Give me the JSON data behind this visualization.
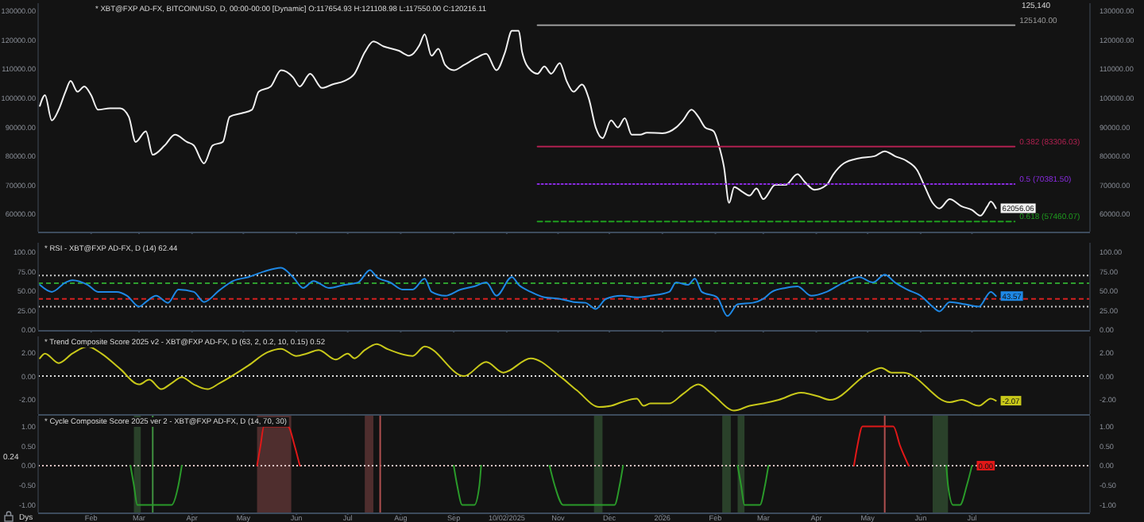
{
  "chart_data": [
    {
      "type": "line",
      "title": "* XBT@FXP AD-FX, BITCOIN/USD, D, 00:00-00:00 [Dynamic] O:117654.93 H:121108.98 L:117550.00 C:120216.11",
      "xlim": [
        "2025-01-01",
        "2026-09-08"
      ],
      "xticks": [
        {
          "value": "2025-02-01",
          "label": null
        },
        {
          "value": "2025-03-01",
          "label": null
        },
        {
          "value": "2025-04-01",
          "label": null
        },
        {
          "value": "2025-05-01",
          "label": null
        },
        {
          "value": "2025-06-01",
          "label": null
        },
        {
          "value": "2025-07-01",
          "label": null
        },
        {
          "value": "2025-08-01",
          "label": null
        },
        {
          "value": "2025-09-01",
          "label": null
        },
        {
          "value": "2025-10-02",
          "label": null
        },
        {
          "value": "2025-11-01",
          "label": null
        },
        {
          "value": "2025-12-01",
          "label": null
        },
        {
          "value": "2026-01-01",
          "label": null
        },
        {
          "value": "2026-02-01",
          "label": null
        },
        {
          "value": "2026-03-01",
          "label": null
        },
        {
          "value": "2026-04-01",
          "label": null
        },
        {
          "value": "2026-05-01",
          "label": null
        },
        {
          "value": "2026-06-01",
          "label": null
        },
        {
          "value": "2026-07-01",
          "label": null
        }
      ],
      "tick_labels": "y",
      "ylim": [
        54000,
        132700
      ],
      "yticks": [
        {
          "value": 60000,
          "label": "60000.00"
        },
        {
          "value": 70000,
          "label": "70000.00"
        },
        {
          "value": 80000,
          "label": "80000.00"
        },
        {
          "value": 90000,
          "label": "90000.00"
        },
        {
          "value": 100000,
          "label": "100000.00"
        },
        {
          "value": 110000,
          "label": "110000.00"
        },
        {
          "value": 120000,
          "label": "120000.00"
        },
        {
          "value": 130000,
          "label": "130000.00"
        }
      ],
      "y2lim": [
        54000,
        132700
      ],
      "y2ticks": [
        {
          "value": 60000,
          "label": "60000.00"
        },
        {
          "value": 70000,
          "label": "70000.00"
        },
        {
          "value": 80000,
          "label": "80000.00"
        },
        {
          "value": 90000,
          "label": "90000.00"
        },
        {
          "value": 100000,
          "label": "100000.00"
        },
        {
          "value": 110000,
          "label": "110000.00"
        },
        {
          "value": 120000,
          "label": "120000.00"
        },
        {
          "value": 130000,
          "label": "130000.00"
        }
      ],
      "annotations": [
        "125,140",
        {
          "text": "62056.06",
          "x": "2026-07-15",
          "y": 62056.06
        }
      ],
      "series": [
        {
          "color": "#f0f0f0",
          "line_style": "solid",
          "x": [
            "2025-01-02",
            "2025-01-05",
            "2025-01-09",
            "2025-01-13",
            "2025-01-17",
            "2025-01-20",
            "2025-01-24",
            "2025-01-28",
            "2025-02-01",
            "2025-02-05",
            "2025-02-12",
            "2025-02-18",
            "2025-02-23",
            "2025-02-27",
            "2025-03-05",
            "2025-03-09",
            "2025-03-16",
            "2025-03-22",
            "2025-03-29",
            "2025-04-02",
            "2025-04-08",
            "2025-04-13",
            "2025-04-19",
            "2025-04-23",
            "2025-04-30",
            "2025-05-06",
            "2025-05-10",
            "2025-05-17",
            "2025-05-23",
            "2025-05-30",
            "2025-06-03",
            "2025-06-09",
            "2025-06-16",
            "2025-06-22",
            "2025-06-29",
            "2025-07-05",
            "2025-07-11",
            "2025-07-16",
            "2025-07-22",
            "2025-07-31",
            "2025-08-06",
            "2025-08-12",
            "2025-08-15",
            "2025-08-19",
            "2025-08-23",
            "2025-08-27",
            "2025-09-01",
            "2025-09-07",
            "2025-09-14",
            "2025-09-20",
            "2025-09-26",
            "2025-10-01",
            "2025-10-05",
            "2025-10-09",
            "2025-10-11",
            "2025-10-16",
            "2025-10-20",
            "2025-10-24",
            "2025-10-28",
            "2025-11-02",
            "2025-11-06",
            "2025-11-10",
            "2025-11-15",
            "2025-11-19",
            "2025-11-23",
            "2025-11-27",
            "2025-12-02",
            "2025-12-06",
            "2025-12-10",
            "2025-12-14",
            "2025-12-19",
            "2025-12-23",
            "2026-01-01",
            "2026-01-09",
            "2026-01-13",
            "2026-01-18",
            "2026-01-22",
            "2026-01-26",
            "2026-01-31",
            "2026-02-03",
            "2026-02-06",
            "2026-02-09",
            "2026-02-12",
            "2026-02-17",
            "2026-02-21",
            "2026-02-25",
            "2026-03-01",
            "2026-03-08",
            "2026-03-14",
            "2026-03-21",
            "2026-03-25",
            "2026-03-31",
            "2026-04-07",
            "2026-04-11",
            "2026-04-17",
            "2026-04-26",
            "2026-05-05",
            "2026-05-11",
            "2026-05-17",
            "2026-05-24",
            "2026-05-30",
            "2026-06-03",
            "2026-06-08",
            "2026-06-12",
            "2026-06-18",
            "2026-06-25",
            "2026-07-01",
            "2026-07-06",
            "2026-07-10",
            "2026-07-12",
            "2026-07-15"
          ],
          "values": [
            97300,
            101000,
            92300,
            96000,
            102200,
            105900,
            102200,
            104000,
            101000,
            96000,
            96500,
            96500,
            93600,
            84900,
            88600,
            80500,
            83700,
            87400,
            84900,
            83700,
            77500,
            83700,
            84900,
            93600,
            94800,
            96000,
            102200,
            104000,
            109600,
            107200,
            104000,
            108400,
            103500,
            104700,
            105900,
            108400,
            115800,
            119500,
            117800,
            116300,
            114600,
            118300,
            122000,
            114600,
            117000,
            111400,
            109600,
            111400,
            113800,
            115300,
            109600,
            115800,
            123200,
            123200,
            115800,
            109600,
            108400,
            110900,
            108400,
            112100,
            105900,
            102200,
            104700,
            99800,
            89900,
            86200,
            92300,
            89900,
            93100,
            87400,
            87400,
            88100,
            87900,
            89900,
            92300,
            96000,
            93600,
            89900,
            88600,
            83700,
            76300,
            63900,
            69400,
            67600,
            66400,
            68900,
            65200,
            70100,
            70100,
            73800,
            71300,
            68400,
            70100,
            73800,
            77500,
            79300,
            80000,
            81700,
            80000,
            78300,
            75100,
            70100,
            63900,
            62000,
            65200,
            62700,
            61500,
            59500,
            62700,
            64400,
            62056.06
          ]
        },
        {
          "name": "125140.00",
          "color": "#9a9a9a",
          "line_style": "solid",
          "x": [
            "2025-10-20",
            "2026-07-26"
          ],
          "values": [
            125140,
            125140
          ]
        },
        {
          "name": "0.382 (83306.03)",
          "color": "#b02050",
          "line_style": "solid",
          "x": [
            "2025-10-20",
            "2026-07-26"
          ],
          "values": [
            83306.03,
            83306.03
          ]
        },
        {
          "name": "0.5 (70381.50)",
          "color": "#8a2be2",
          "line_style": "dotted",
          "x": [
            "2025-10-20",
            "2026-07-26"
          ],
          "values": [
            70381.5,
            70381.5
          ]
        },
        {
          "name": "0.618 (57460.07)",
          "color": "#1f9d1f",
          "line_style": "dashed",
          "x": [
            "2025-10-20",
            "2026-07-26"
          ],
          "values": [
            57460.07,
            57460.07
          ]
        }
      ]
    },
    {
      "type": "line",
      "title": "* RSI - XBT@FXP AD-FX, D (14) 62.44",
      "xlim": [
        "2025-01-01",
        "2026-09-08"
      ],
      "xticks": [
        {
          "value": "2025-02-01",
          "label": null
        },
        {
          "value": "2025-03-01",
          "label": null
        },
        {
          "value": "2025-04-01",
          "label": null
        },
        {
          "value": "2025-05-01",
          "label": null
        },
        {
          "value": "2025-06-01",
          "label": null
        },
        {
          "value": "2025-07-01",
          "label": null
        },
        {
          "value": "2025-08-01",
          "label": null
        },
        {
          "value": "2025-09-01",
          "label": null
        },
        {
          "value": "2025-10-02",
          "label": null
        },
        {
          "value": "2025-11-01",
          "label": null
        },
        {
          "value": "2025-12-01",
          "label": null
        },
        {
          "value": "2026-01-01",
          "label": null
        },
        {
          "value": "2026-02-01",
          "label": null
        },
        {
          "value": "2026-03-01",
          "label": null
        },
        {
          "value": "2026-04-01",
          "label": null
        },
        {
          "value": "2026-05-01",
          "label": null
        },
        {
          "value": "2026-06-01",
          "label": null
        },
        {
          "value": "2026-07-01",
          "label": null
        }
      ],
      "tick_labels": "y",
      "ylim": [
        0,
        112
      ],
      "yticks": [
        {
          "value": 0,
          "label": "0.00"
        },
        {
          "value": 25,
          "label": "25.00"
        },
        {
          "value": 50,
          "label": "50.00"
        },
        {
          "value": 75,
          "label": "75.00"
        },
        {
          "value": 100,
          "label": "100.00"
        }
      ],
      "y2lim": [
        0,
        112
      ],
      "y2ticks": [
        {
          "value": 0,
          "label": "0.00"
        },
        {
          "value": 25,
          "label": "25.00"
        },
        {
          "value": 50,
          "label": "50.00"
        },
        {
          "value": 75,
          "label": "75.00"
        },
        {
          "value": 100,
          "label": "100.00"
        }
      ],
      "ref_lines": [
        {
          "axis": "y",
          "value": 70,
          "color": "#cfcfcf",
          "line_style": "dotted"
        },
        {
          "axis": "y",
          "value": 60,
          "color": "#2e9e2e",
          "line_style": "dashed"
        },
        {
          "axis": "y",
          "value": 40,
          "color": "#d42020",
          "line_style": "dashed"
        },
        {
          "axis": "y",
          "value": 30,
          "color": "#cfcfcf",
          "line_style": "dotted"
        }
      ],
      "annotations": [
        {
          "text": "43.57",
          "x": "2026-07-15",
          "y": 43.57
        }
      ],
      "series": [
        {
          "color": "#1e88e5",
          "line_style": "solid",
          "x": [
            "2025-01-02",
            "2025-01-09",
            "2025-01-17",
            "2025-01-21",
            "2025-01-30",
            "2025-02-05",
            "2025-02-16",
            "2025-02-22",
            "2025-03-01",
            "2025-03-05",
            "2025-03-11",
            "2025-03-18",
            "2025-03-24",
            "2025-04-02",
            "2025-04-08",
            "2025-04-17",
            "2025-04-25",
            "2025-05-04",
            "2025-05-13",
            "2025-05-23",
            "2025-05-30",
            "2025-06-05",
            "2025-06-11",
            "2025-06-20",
            "2025-06-29",
            "2025-07-07",
            "2025-07-14",
            "2025-07-18",
            "2025-07-26",
            "2025-08-02",
            "2025-08-08",
            "2025-08-15",
            "2025-08-19",
            "2025-08-27",
            "2025-09-05",
            "2025-09-13",
            "2025-09-20",
            "2025-09-26",
            "2025-10-05",
            "2025-10-09",
            "2025-10-16",
            "2025-10-24",
            "2025-11-02",
            "2025-11-10",
            "2025-11-17",
            "2025-11-23",
            "2025-11-29",
            "2025-12-08",
            "2025-12-17",
            "2025-12-25",
            "2026-01-05",
            "2026-01-09",
            "2026-01-16",
            "2026-01-20",
            "2026-01-24",
            "2026-02-02",
            "2026-02-08",
            "2026-02-14",
            "2026-02-23",
            "2026-03-01",
            "2026-03-06",
            "2026-03-14",
            "2026-03-21",
            "2026-03-29",
            "2026-04-07",
            "2026-04-17",
            "2026-04-26",
            "2026-05-04",
            "2026-05-11",
            "2026-05-17",
            "2026-05-24",
            "2026-06-01",
            "2026-06-08",
            "2026-06-12",
            "2026-06-18",
            "2026-06-27",
            "2026-07-05",
            "2026-07-12",
            "2026-07-15"
          ],
          "values": [
            58,
            49,
            61,
            64,
            58,
            49,
            49,
            44,
            30,
            36,
            44,
            35,
            52,
            49,
            36,
            51,
            63,
            68,
            75,
            80,
            68,
            54,
            63,
            54,
            58,
            61,
            77,
            68,
            61,
            52,
            52,
            66,
            49,
            44,
            52,
            56,
            61,
            44,
            68,
            58,
            49,
            42,
            40,
            36,
            35,
            27,
            40,
            44,
            42,
            44,
            49,
            61,
            58,
            66,
            49,
            42,
            18,
            33,
            35,
            40,
            49,
            54,
            56,
            44,
            49,
            61,
            68,
            61,
            71,
            61,
            52,
            44,
            30,
            24,
            36,
            33,
            30,
            49,
            43.57
          ]
        }
      ]
    },
    {
      "type": "line",
      "title": "* Trend Composite Score 2025 v2 - XBT@FXP AD-FX, D (63, 2, 0.2, 10, 0.15) 0.52",
      "xlim": [
        "2025-01-01",
        "2026-09-08"
      ],
      "xticks": [
        {
          "value": "2025-02-01",
          "label": null
        },
        {
          "value": "2025-03-01",
          "label": null
        },
        {
          "value": "2025-04-01",
          "label": null
        },
        {
          "value": "2025-05-01",
          "label": null
        },
        {
          "value": "2025-06-01",
          "label": null
        },
        {
          "value": "2025-07-01",
          "label": null
        },
        {
          "value": "2025-08-01",
          "label": null
        },
        {
          "value": "2025-09-01",
          "label": null
        },
        {
          "value": "2025-10-02",
          "label": null
        },
        {
          "value": "2025-11-01",
          "label": null
        },
        {
          "value": "2025-12-01",
          "label": null
        },
        {
          "value": "2026-01-01",
          "label": null
        },
        {
          "value": "2026-02-01",
          "label": null
        },
        {
          "value": "2026-03-01",
          "label": null
        },
        {
          "value": "2026-04-01",
          "label": null
        },
        {
          "value": "2026-05-01",
          "label": null
        },
        {
          "value": "2026-06-01",
          "label": null
        },
        {
          "value": "2026-07-01",
          "label": null
        }
      ],
      "tick_labels": "y",
      "ylim": [
        -3.2,
        3.35
      ],
      "yticks": [
        {
          "value": -2,
          "label": "-2.00"
        },
        {
          "value": 0,
          "label": "0.00"
        },
        {
          "value": 2,
          "label": "2.00"
        }
      ],
      "y2lim": [
        -3.2,
        3.35
      ],
      "y2ticks": [
        {
          "value": -2,
          "label": "-2.00"
        },
        {
          "value": 0,
          "label": "0.00"
        },
        {
          "value": 2,
          "label": "2.00"
        }
      ],
      "ref_lines": [
        {
          "axis": "y",
          "value": 0,
          "color": "#e0e0e0",
          "line_style": "dotted"
        }
      ],
      "annotations": [
        {
          "text": "-2.07",
          "x": "2026-07-15",
          "y": -2.07
        }
      ],
      "series": [
        {
          "color": "#c8c81a",
          "line_style": "solid",
          "x": [
            "2025-01-02",
            "2025-01-05",
            "2025-01-13",
            "2025-01-21",
            "2025-01-30",
            "2025-02-07",
            "2025-02-18",
            "2025-03-01",
            "2025-03-07",
            "2025-03-14",
            "2025-03-20",
            "2025-03-26",
            "2025-04-02",
            "2025-04-10",
            "2025-04-17",
            "2025-05-04",
            "2025-05-15",
            "2025-05-23",
            "2025-06-01",
            "2025-06-07",
            "2025-06-14",
            "2025-06-24",
            "2025-07-01",
            "2025-07-05",
            "2025-07-11",
            "2025-07-18",
            "2025-07-24",
            "2025-08-08",
            "2025-08-15",
            "2025-09-07",
            "2025-09-20",
            "2025-09-30",
            "2025-10-16",
            "2025-11-02",
            "2025-11-12",
            "2025-11-25",
            "2025-12-02",
            "2025-12-08",
            "2025-12-17",
            "2025-12-21",
            "2025-12-25",
            "2026-01-05",
            "2026-01-13",
            "2026-01-22",
            "2026-01-30",
            "2026-02-12",
            "2026-02-21",
            "2026-03-01",
            "2026-03-10",
            "2026-03-23",
            "2026-04-02",
            "2026-04-09",
            "2026-05-02",
            "2026-05-09",
            "2026-05-15",
            "2026-05-22",
            "2026-06-18",
            "2026-06-25",
            "2026-07-05",
            "2026-07-12",
            "2026-07-15"
          ],
          "values": [
            1.5,
            1.9,
            1.1,
            1.9,
            2.5,
            1.9,
            0.6,
            -0.7,
            -0.3,
            -1.1,
            -0.6,
            -0.1,
            -0.7,
            -1.1,
            -0.6,
            0.9,
            2,
            2.3,
            1.7,
            1.9,
            2.2,
            1.4,
            1.9,
            1.5,
            2.2,
            2.7,
            2.3,
            1.7,
            2.5,
            0,
            1.2,
            0.3,
            1.5,
            0,
            -1.2,
            -2.6,
            -2.5,
            -2.2,
            -1.9,
            -2.5,
            -2.3,
            -2.3,
            -1.5,
            -0.7,
            -1.5,
            -2.9,
            -2.5,
            -2.3,
            -2,
            -1.4,
            -1.7,
            -2,
            0.3,
            0.7,
            0.3,
            0.3,
            -2.2,
            -2,
            -2.5,
            -1.9,
            -2.07
          ]
        }
      ]
    },
    {
      "type": "line",
      "title": "* Cycle Composite Score 2025 ver 2 - XBT@FXP AD-FX, D (14, 70, 30)",
      "xlim": [
        "2025-01-01",
        "2026-09-08"
      ],
      "xticks": [
        {
          "value": "2025-02-01",
          "label": "Feb"
        },
        {
          "value": "2025-03-01",
          "label": "Mar"
        },
        {
          "value": "2025-04-01",
          "label": "Apr"
        },
        {
          "value": "2025-05-01",
          "label": "May"
        },
        {
          "value": "2025-06-01",
          "label": "Jun"
        },
        {
          "value": "2025-07-01",
          "label": "Jul"
        },
        {
          "value": "2025-08-01",
          "label": "Aug"
        },
        {
          "value": "2025-09-01",
          "label": "Sep"
        },
        {
          "value": "2025-10-02",
          "label": "10/02/2025"
        },
        {
          "value": "2025-11-01",
          "label": "Nov"
        },
        {
          "value": "2025-12-01",
          "label": "Dec"
        },
        {
          "value": "2026-01-01",
          "label": "2026"
        },
        {
          "value": "2026-02-01",
          "label": "Feb"
        },
        {
          "value": "2026-03-01",
          "label": "Mar"
        },
        {
          "value": "2026-04-01",
          "label": "Apr"
        },
        {
          "value": "2026-05-01",
          "label": "May"
        },
        {
          "value": "2026-06-01",
          "label": "Jun"
        },
        {
          "value": "2026-07-01",
          "label": "Jul"
        }
      ],
      "ylim": [
        -1.19,
        1.27
      ],
      "yticks": [
        {
          "value": -1,
          "label": "-1.00"
        },
        {
          "value": -0.5,
          "label": "-0.50"
        },
        {
          "value": 0,
          "label": "0.00"
        },
        {
          "value": 0.5,
          "label": "0.50"
        },
        {
          "value": 1,
          "label": "1.00"
        }
      ],
      "y2lim": [
        -1.19,
        1.27
      ],
      "y2ticks": [
        {
          "value": -1,
          "label": "-1.00"
        },
        {
          "value": -0.5,
          "label": "-0.50"
        },
        {
          "value": 0,
          "label": "0.00"
        },
        {
          "value": 0.5,
          "label": "0.50"
        },
        {
          "value": 1,
          "label": "1.00"
        }
      ],
      "bands": [
        {
          "axis": "x",
          "from": "2025-02-26",
          "to": "2025-03-02",
          "color": "#2f4a2f"
        },
        {
          "axis": "x",
          "from": "2025-05-09",
          "to": "2025-05-29",
          "color": "#5a3434"
        },
        {
          "axis": "x",
          "from": "2025-07-11",
          "to": "2025-07-16",
          "color": "#5a3434"
        },
        {
          "axis": "x",
          "from": "2025-11-22",
          "to": "2025-11-27",
          "color": "#2f4a2f"
        },
        {
          "axis": "x",
          "from": "2026-02-05",
          "to": "2026-02-10",
          "color": "#2f4a2f"
        },
        {
          "axis": "x",
          "from": "2026-02-14",
          "to": "2026-02-18",
          "color": "#2f4a2f"
        },
        {
          "axis": "x",
          "from": "2026-06-08",
          "to": "2026-06-17",
          "color": "#2f4a2f"
        }
      ],
      "ref_lines": [
        {
          "axis": "y",
          "value": 0,
          "color": "#e8c8c8",
          "line_style": "dotted"
        },
        {
          "axis": "x",
          "value": "2025-03-09",
          "color": "#3f8f3f",
          "line_style": "solid"
        },
        {
          "axis": "x",
          "value": "2025-07-20",
          "color": "#b05050",
          "line_style": "solid"
        },
        {
          "axis": "x",
          "value": "2026-05-11",
          "color": "#b05050",
          "line_style": "solid"
        }
      ],
      "annotations": [
        "Dys",
        {
          "text": "0.00",
          "x": "2026-07-01",
          "y": 0
        },
        "0.24"
      ],
      "series": [
        {
          "color": "#e01818",
          "line_style": "solid",
          "x": [
            "2025-05-09",
            "2025-05-11",
            "2025-05-13",
            "2025-05-27",
            "2025-05-31",
            "2025-06-03",
            "2025-06-04",
            "2026-04-22",
            "2026-04-23",
            "2026-04-25",
            "2026-04-28",
            "2026-05-16",
            "2026-05-20",
            "2026-05-25"
          ],
          "values": [
            0,
            0.5,
            1,
            1,
            0.5,
            0,
            null,
            null,
            0,
            0.5,
            1,
            1,
            0.5,
            0
          ]
        },
        {
          "color": "#2a9a2a",
          "line_style": "solid",
          "x": [
            "2025-02-24",
            "2025-02-26",
            "2025-02-28",
            "2025-03-20",
            "2025-03-24",
            "2025-03-26",
            "2025-03-27",
            "2025-09-01",
            "2025-09-03",
            "2025-09-06",
            "2025-09-13",
            "2025-09-16",
            "2025-09-17",
            "2025-09-18",
            "2025-10-27",
            "2025-10-30",
            "2025-11-04",
            "2025-12-04",
            "2025-12-07",
            "2025-12-09",
            "2025-12-10",
            "2026-02-14",
            "2026-02-16",
            "2026-02-18",
            "2026-02-27",
            "2026-03-02",
            "2026-03-04",
            "2026-03-05",
            "2026-06-16",
            "2026-06-17",
            "2026-06-20",
            "2026-06-24",
            "2026-06-28",
            "2026-07-01"
          ],
          "values": [
            0,
            -0.5,
            -1,
            -1,
            -0.5,
            0,
            null,
            0,
            -0.5,
            -1,
            -1,
            -0.5,
            0,
            null,
            0,
            -0.5,
            -1,
            -1,
            -0.5,
            0,
            null,
            0,
            -0.5,
            -1,
            -1,
            -0.5,
            0,
            null,
            0,
            -0.5,
            -1,
            -1,
            -0.5,
            0
          ]
        }
      ]
    }
  ]
}
